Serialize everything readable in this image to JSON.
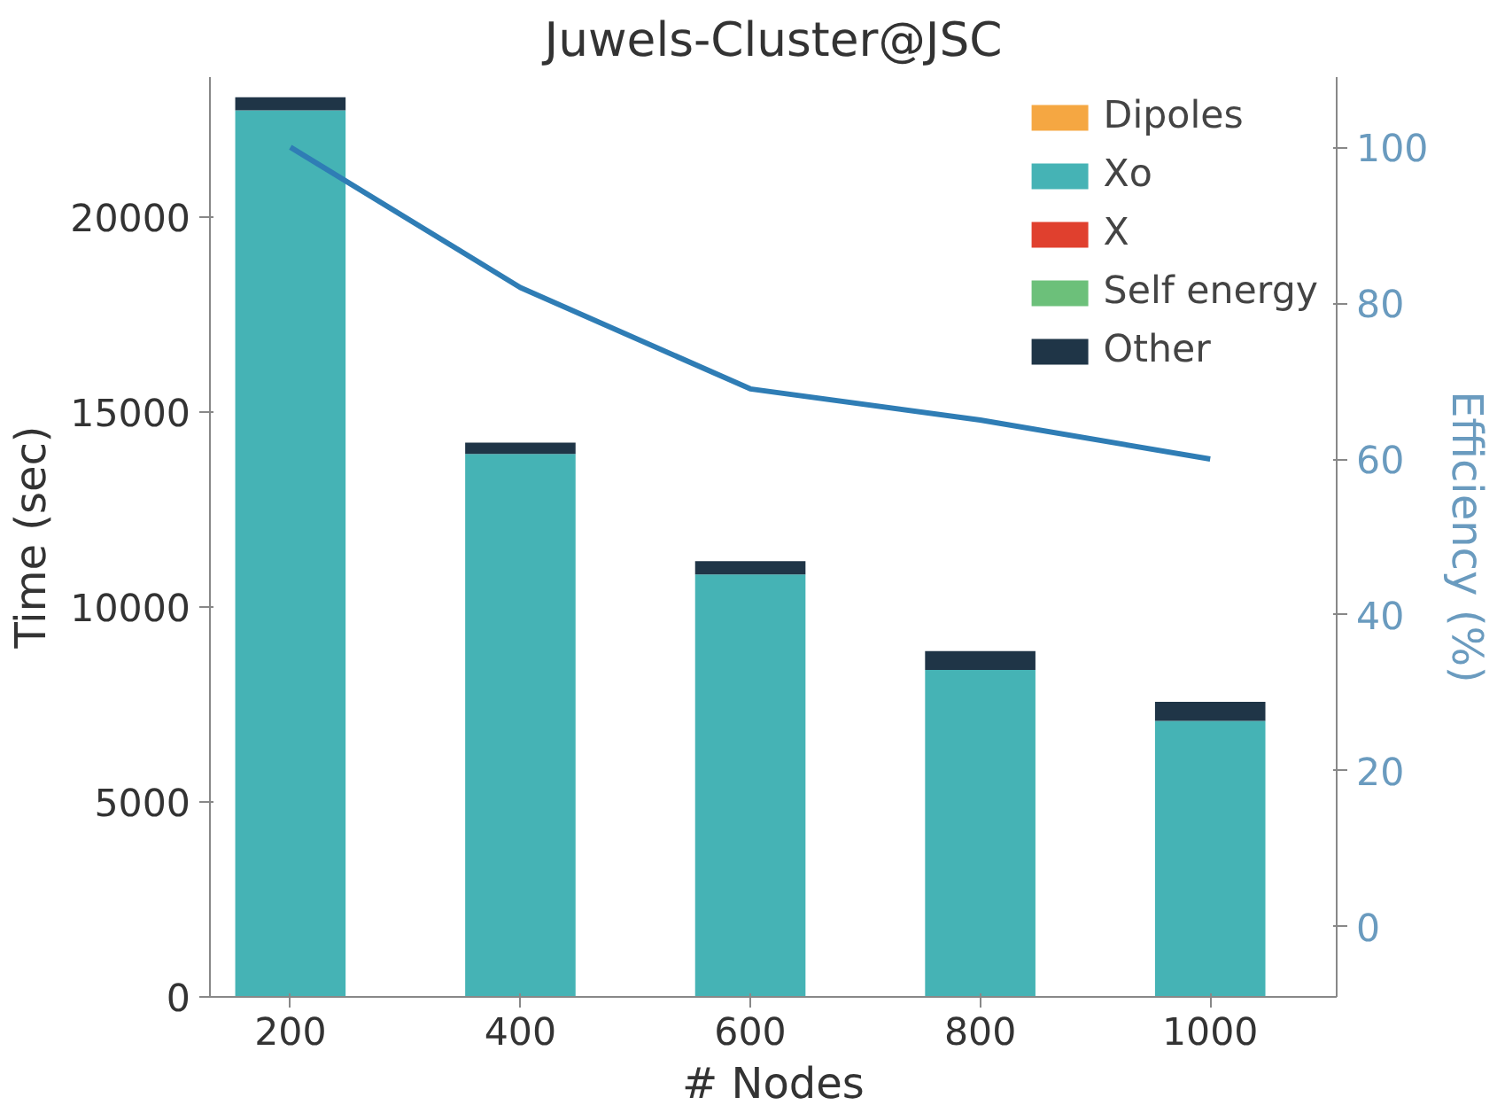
{
  "chart_data": {
    "type": "bar",
    "title": "Juwels-Cluster@JSC",
    "xlabel": "# Nodes",
    "ylabel": "Time (sec)",
    "y2label": "Efficiency (%)",
    "x": [
      200,
      400,
      600,
      800,
      1000
    ],
    "xlim": [
      130,
      1110
    ],
    "xticks": [
      200,
      400,
      600,
      800,
      1000
    ],
    "ylim": [
      0,
      23600
    ],
    "yticks": [
      0,
      5000,
      10000,
      15000,
      20000
    ],
    "y2lim": [
      -9,
      109
    ],
    "y2ticks": [
      0,
      20,
      40,
      60,
      80,
      100
    ],
    "stacked": true,
    "grid": false,
    "legend": "top right",
    "series": [
      {
        "name": "Dipoles",
        "color": "#f5a742",
        "values": [
          0,
          0,
          0,
          0,
          0
        ]
      },
      {
        "name": "Xo",
        "color": "#45b3b5",
        "values": [
          22750,
          13930,
          10840,
          8390,
          7080
        ]
      },
      {
        "name": "X",
        "color": "#e0402e",
        "values": [
          0,
          0,
          0,
          0,
          0
        ]
      },
      {
        "name": "Self energy",
        "color": "#6cc07a",
        "values": [
          0,
          0,
          0,
          0,
          0
        ]
      },
      {
        "name": "Other",
        "color": "#1f3547",
        "values": [
          330,
          290,
          340,
          480,
          490
        ]
      },
      {
        "type": "line",
        "axis": "y2",
        "color": "#2f7db5",
        "values": [
          100,
          82,
          69,
          65,
          60
        ]
      }
    ]
  }
}
